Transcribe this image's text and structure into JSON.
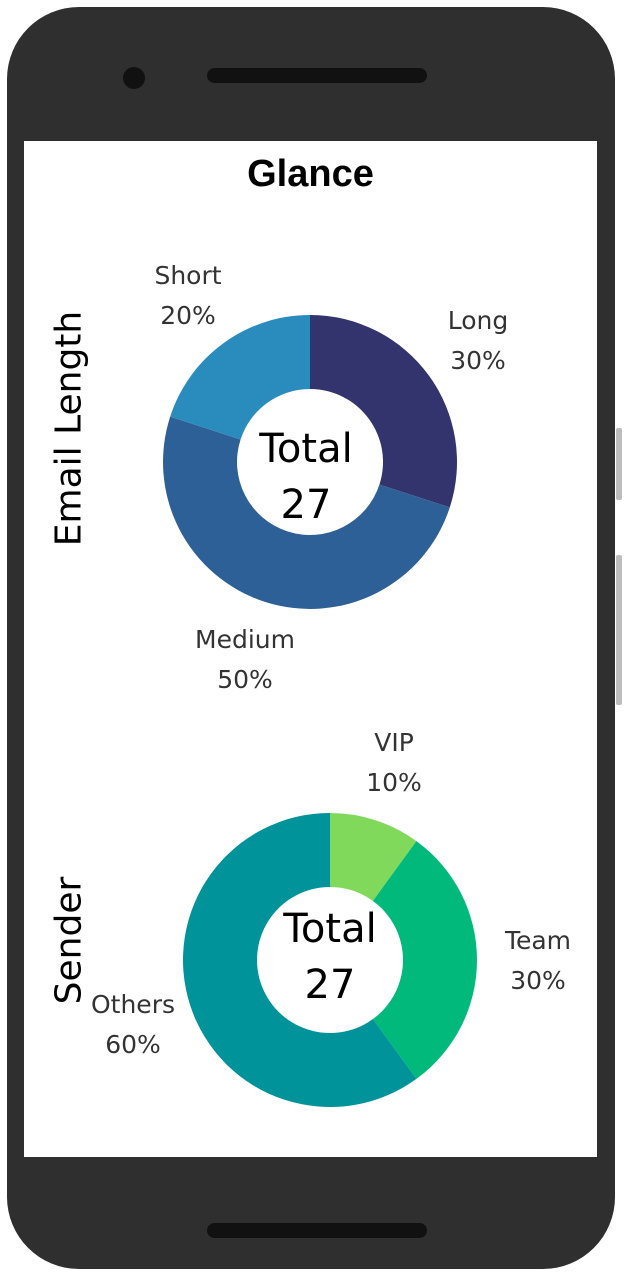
{
  "header": {
    "title": "Glance"
  },
  "chart_data": [
    {
      "type": "pie",
      "ylabel": "Email Length",
      "center": {
        "label": "Total",
        "value": "27"
      },
      "categories": [
        "Long",
        "Medium",
        "Short"
      ],
      "values": [
        30,
        50,
        20
      ],
      "value_labels": [
        "30%",
        "50%",
        "20%"
      ],
      "colors": [
        "#33336e",
        "#2e6098",
        "#2a8bbd"
      ]
    },
    {
      "type": "pie",
      "ylabel": "Sender",
      "center": {
        "label": "Total",
        "value": "27"
      },
      "categories": [
        "VIP",
        "Team",
        "Others"
      ],
      "values": [
        10,
        30,
        60
      ],
      "value_labels": [
        "10%",
        "30%",
        "60%"
      ],
      "colors": [
        "#80d95b",
        "#00b97b",
        "#00939a"
      ]
    }
  ]
}
